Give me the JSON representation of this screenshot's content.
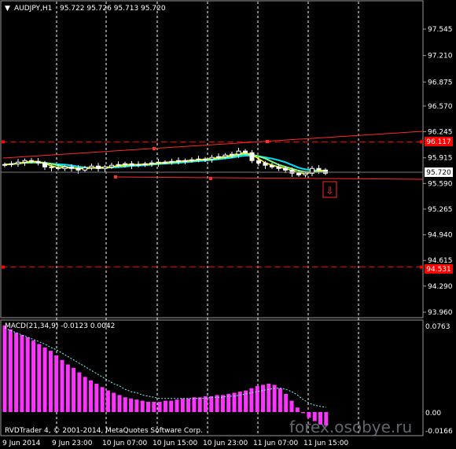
{
  "header": {
    "symbol": "AUDJPY,H1",
    "ohlc": "95.722 95.726 95.713 95.720"
  },
  "price_axis": [
    "97.545",
    "97.210",
    "96.875",
    "96.570",
    "96.245",
    "95.915",
    "95.590",
    "95.265",
    "94.940",
    "94.615",
    "94.290",
    "93.960"
  ],
  "price_labels": {
    "upper_line": "96.117",
    "current": "95.720",
    "lower_line": "94.531"
  },
  "macd": {
    "title": "MACD(21,34,9) -0.0123 0.0042",
    "axis_top": "0.0763",
    "axis_zero": "0.00",
    "axis_bottom": "-0.0166",
    "histogram": [
      0.0763,
      0.073,
      0.07,
      0.068,
      0.066,
      0.063,
      0.06,
      0.057,
      0.054,
      0.05,
      0.046,
      0.042,
      0.039,
      0.035,
      0.031,
      0.028,
      0.025,
      0.022,
      0.019,
      0.017,
      0.015,
      0.013,
      0.012,
      0.011,
      0.01,
      0.009,
      0.009,
      0.009,
      0.01,
      0.01,
      0.011,
      0.012,
      0.012,
      0.013,
      0.013,
      0.014,
      0.014,
      0.015,
      0.015,
      0.016,
      0.017,
      0.018,
      0.019,
      0.021,
      0.023,
      0.024,
      0.025,
      0.024,
      0.021,
      0.016,
      0.01,
      0.004,
      -0.001,
      -0.005,
      -0.008,
      -0.011,
      -0.012
    ],
    "signal_line": [
      0.074,
      0.072,
      0.07,
      0.068,
      0.066,
      0.064,
      0.062,
      0.06,
      0.057,
      0.055,
      0.052,
      0.049,
      0.046,
      0.043,
      0.04,
      0.037,
      0.034,
      0.031,
      0.028,
      0.025,
      0.023,
      0.02,
      0.018,
      0.017,
      0.015,
      0.014,
      0.013,
      0.012,
      0.012,
      0.012,
      0.012,
      0.012,
      0.012,
      0.012,
      0.012,
      0.012,
      0.013,
      0.013,
      0.013,
      0.014,
      0.014,
      0.015,
      0.016,
      0.017,
      0.018,
      0.019,
      0.02,
      0.021,
      0.021,
      0.02,
      0.018,
      0.015,
      0.011,
      0.008,
      0.006,
      0.005,
      0.0042
    ]
  },
  "time_axis": [
    "9 Jun 2014",
    "9 Jun 23:00",
    "10 Jun 07:00",
    "10 Jun 15:00",
    "10 Jun 23:00",
    "11 Jun 07:00",
    "11 Jun 15:00"
  ],
  "copyright": "RVDTrader 4, © 2001-2014, MetaQuotes Software Corp.",
  "watermark": "forex.osobye.ru",
  "colors": {
    "background": "#000000",
    "bull_candle": "#ffffff",
    "bear_candle": "#ffffff",
    "ma_fast": "#ffff00",
    "ma_slow": "#00ffff",
    "ma_mid": "#7fff7f",
    "histogram": "#ff33ff",
    "signal": "#7fffff",
    "level_line": "#ff0000",
    "trend_line": "#ff3333"
  },
  "chart_data": {
    "type": "candlestick",
    "symbol": "AUDJPY",
    "timeframe": "H1",
    "close": [
      95.83,
      95.84,
      95.86,
      95.88,
      95.87,
      95.85,
      95.8,
      95.79,
      95.78,
      95.8,
      95.78,
      95.76,
      95.79,
      95.81,
      95.78,
      95.8,
      95.82,
      95.83,
      95.84,
      95.82,
      95.83,
      95.84,
      95.85,
      95.86,
      95.86,
      95.87,
      95.88,
      95.88,
      95.89,
      95.9,
      95.9,
      95.92,
      95.93,
      95.95,
      95.96,
      96.0,
      95.98,
      95.88,
      95.85,
      95.82,
      95.8,
      95.78,
      95.76,
      95.72,
      95.7,
      95.72,
      95.78,
      95.76,
      95.72
    ],
    "ylim": [
      93.96,
      97.7
    ],
    "horizontal_levels": [
      96.117,
      94.531
    ],
    "current_price": 95.72
  }
}
